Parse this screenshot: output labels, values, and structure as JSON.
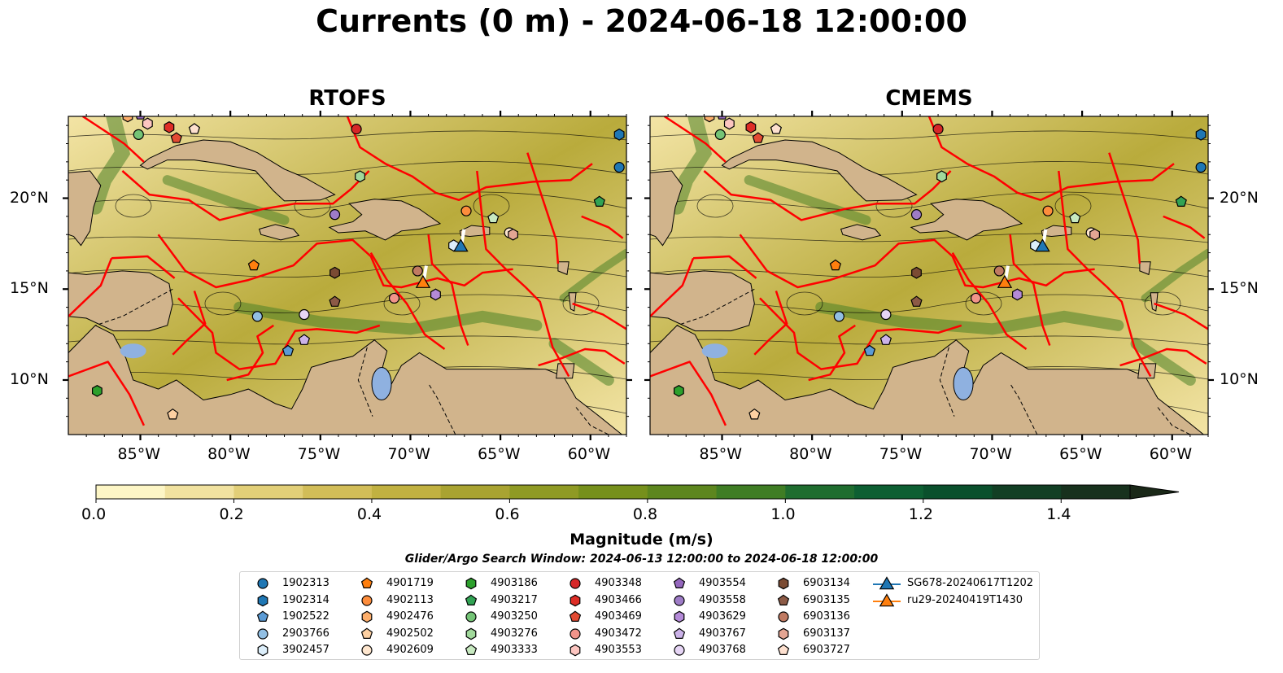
{
  "title": "Currents (0 m) - 2024-06-18 12:00:00",
  "panels": [
    {
      "title": "RTOFS",
      "glider_offset": [
        0,
        0
      ]
    },
    {
      "title": "CMEMS",
      "glider_offset": [
        0,
        0
      ]
    }
  ],
  "map_extent": {
    "lon": [
      -89,
      -58
    ],
    "lat": [
      7,
      24.5
    ]
  },
  "lat_ticks": [
    {
      "value": 20,
      "label": "20°N"
    },
    {
      "value": 15,
      "label": "15°N"
    },
    {
      "value": 10,
      "label": "10°N"
    }
  ],
  "lon_ticks": [
    {
      "value": -85,
      "label": "85°W"
    },
    {
      "value": -80,
      "label": "80°W"
    },
    {
      "value": -75,
      "label": "75°W"
    },
    {
      "value": -70,
      "label": "70°W"
    },
    {
      "value": -65,
      "label": "65°W"
    },
    {
      "value": -60,
      "label": "60°W"
    }
  ],
  "colorbar": {
    "label": "Magnitude (m/s)",
    "min": 0,
    "max": 1.5,
    "extend": "max",
    "ticks": [
      {
        "value": 0.0,
        "label": "0.0"
      },
      {
        "value": 0.2,
        "label": "0.2"
      },
      {
        "value": 0.4,
        "label": "0.4"
      },
      {
        "value": 0.6,
        "label": "0.6"
      },
      {
        "value": 0.8,
        "label": "0.8"
      },
      {
        "value": 1.0,
        "label": "1.0"
      },
      {
        "value": 1.2,
        "label": "1.2"
      },
      {
        "value": 1.4,
        "label": "1.4"
      }
    ],
    "colors": [
      "#fdf6c6",
      "#f1e2a0",
      "#e2cf78",
      "#d2bd58",
      "#c1b141",
      "#a9a331",
      "#8f9a24",
      "#76901c",
      "#5d861e",
      "#3f7d24",
      "#1f6d2f",
      "#0d5f32",
      "#0a502c",
      "#123f24",
      "#17311d",
      "#1a2818"
    ]
  },
  "search_window": "Glider/Argo Search Window: 2024-06-13 12:00:00 to 2024-06-18 12:00:00",
  "colors": {
    "land": "#d1b48c",
    "ocean_low": "#f3e4a5",
    "ocean_mid": "#b9ab3c",
    "ocean_high": "#4c8228",
    "eez_line": "#ff0000",
    "lake": "#8fb1e0"
  },
  "legend": [
    {
      "label": "1902313",
      "marker": "circle",
      "color": "#1f77b4",
      "lon": -58.4,
      "lat": 21.7
    },
    {
      "label": "1902314",
      "marker": "hexagon",
      "color": "#1f77b4",
      "lon": -58.4,
      "lat": 23.5
    },
    {
      "label": "1902522",
      "marker": "pentagon",
      "color": "#5b9bd5",
      "lon": -76.8,
      "lat": 11.6
    },
    {
      "label": "2903766",
      "marker": "circle",
      "color": "#92bfe3",
      "lon": -78.5,
      "lat": 13.5
    },
    {
      "label": "3902457",
      "marker": "hexagon",
      "color": "#dceefa",
      "lon": -67.6,
      "lat": 17.4
    },
    {
      "label": "4901719",
      "marker": "pentagon",
      "color": "#ff7f0e",
      "lon": -78.7,
      "lat": 16.3
    },
    {
      "label": "4902113",
      "marker": "circle",
      "color": "#fd8d3c",
      "lon": -66.9,
      "lat": 19.3
    },
    {
      "label": "4902476",
      "marker": "hexagon",
      "color": "#fdae6b",
      "lon": -85.7,
      "lat": 24.5
    },
    {
      "label": "4902502",
      "marker": "pentagon",
      "color": "#fdd0a2",
      "lon": -83.2,
      "lat": 8.1
    },
    {
      "label": "4902609",
      "marker": "circle",
      "color": "#fee6ce",
      "lon": -64.5,
      "lat": 18.1
    },
    {
      "label": "4903186",
      "marker": "hexagon",
      "color": "#2ca02c",
      "lon": -87.4,
      "lat": 9.4
    },
    {
      "label": "4903217",
      "marker": "pentagon",
      "color": "#31a354",
      "lon": -59.5,
      "lat": 19.8
    },
    {
      "label": "4903250",
      "marker": "circle",
      "color": "#74c476",
      "lon": -85.1,
      "lat": 23.5
    },
    {
      "label": "4903276",
      "marker": "hexagon",
      "color": "#a1d99b",
      "lon": -72.8,
      "lat": 21.2
    },
    {
      "label": "4903333",
      "marker": "pentagon",
      "color": "#c7e9c0",
      "lon": -65.4,
      "lat": 18.9
    },
    {
      "label": "4903348",
      "marker": "circle",
      "color": "#d62728",
      "lon": -73.0,
      "lat": 23.8
    },
    {
      "label": "4903466",
      "marker": "hexagon",
      "color": "#de2d26",
      "lon": -83.4,
      "lat": 23.9
    },
    {
      "label": "4903469",
      "marker": "pentagon",
      "color": "#e34a33",
      "lon": -83.0,
      "lat": 23.3
    },
    {
      "label": "4903472",
      "marker": "circle",
      "color": "#f1948a",
      "lon": -70.9,
      "lat": 14.5
    },
    {
      "label": "4903553",
      "marker": "hexagon",
      "color": "#fcc5c0",
      "lon": -84.6,
      "lat": 24.1
    },
    {
      "label": "4903554",
      "marker": "pentagon",
      "color": "#9467bd",
      "lon": -85.0,
      "lat": 24.6
    },
    {
      "label": "4903558",
      "marker": "circle",
      "color": "#9e7cc7",
      "lon": -74.2,
      "lat": 19.1
    },
    {
      "label": "4903629",
      "marker": "hexagon",
      "color": "#b48ad8",
      "lon": -68.6,
      "lat": 14.7
    },
    {
      "label": "4903767",
      "marker": "pentagon",
      "color": "#cbb2e8",
      "lon": -75.9,
      "lat": 12.2
    },
    {
      "label": "4903768",
      "marker": "circle",
      "color": "#e6d5f5",
      "lon": -75.9,
      "lat": 13.6
    },
    {
      "label": "6903134",
      "marker": "hexagon",
      "color": "#7b4b33",
      "lon": -74.2,
      "lat": 15.9
    },
    {
      "label": "6903135",
      "marker": "pentagon",
      "color": "#8c5a46",
      "lon": -74.2,
      "lat": 14.3
    },
    {
      "label": "6903136",
      "marker": "circle",
      "color": "#c07a62",
      "lon": -69.6,
      "lat": 16.0
    },
    {
      "label": "6903137",
      "marker": "hexagon",
      "color": "#e3a593",
      "lon": -64.3,
      "lat": 18.0
    },
    {
      "label": "6903727",
      "marker": "pentagon",
      "color": "#fde0cf",
      "lon": -82.0,
      "lat": 23.8
    },
    {
      "label": "SG678-20240617T1202",
      "marker": "triangle-line",
      "color": "#1f77b4",
      "lon": -67.2,
      "lat": 17.3
    },
    {
      "label": "ru29-20240419T1430",
      "marker": "triangle-line",
      "color": "#ff7f0e",
      "lon": -69.3,
      "lat": 15.3
    }
  ]
}
